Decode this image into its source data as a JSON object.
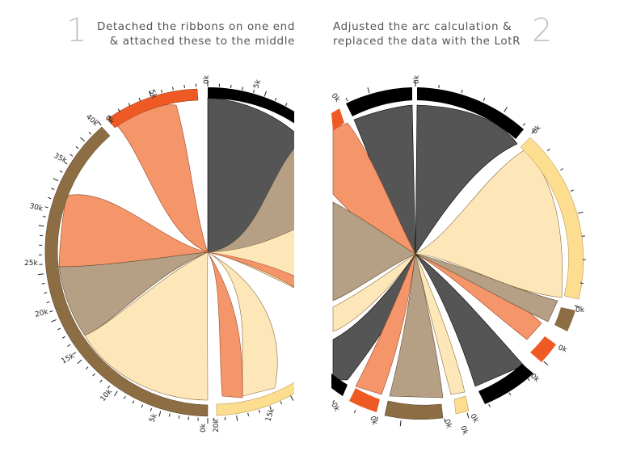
{
  "steps": [
    {
      "number": "1",
      "line1": "Detached the ribbons on one end",
      "line2": "& attached these to the middle"
    },
    {
      "number": "2",
      "line1": "Adjusted the arc calculation &",
      "line2": "replaced the data with the LotR"
    }
  ],
  "colors": {
    "black": "#000000",
    "dark_grey": "#555555",
    "taupe": "#b5a086",
    "salmon": "#f4956a",
    "cream": "#fde7b8",
    "tan_arc": "#8d6d43",
    "orange_arc": "#ef5a24",
    "yellow_arc": "#fddd8f"
  },
  "left_ticks": {
    "top_black": [
      "0k",
      "5k"
    ],
    "orange": [
      "0k",
      "5k"
    ],
    "brown": [
      "40k",
      "35k",
      "30k",
      "25k",
      "20k",
      "15k",
      "10k",
      "5k",
      "0k"
    ],
    "bottom_yellow": [
      "20k",
      "15k"
    ]
  },
  "right_ticks": [
    "0k",
    "0k",
    "0k",
    "0k",
    "0k",
    "0k",
    "0k",
    "0k",
    "0k",
    "0k",
    "0k"
  ]
}
